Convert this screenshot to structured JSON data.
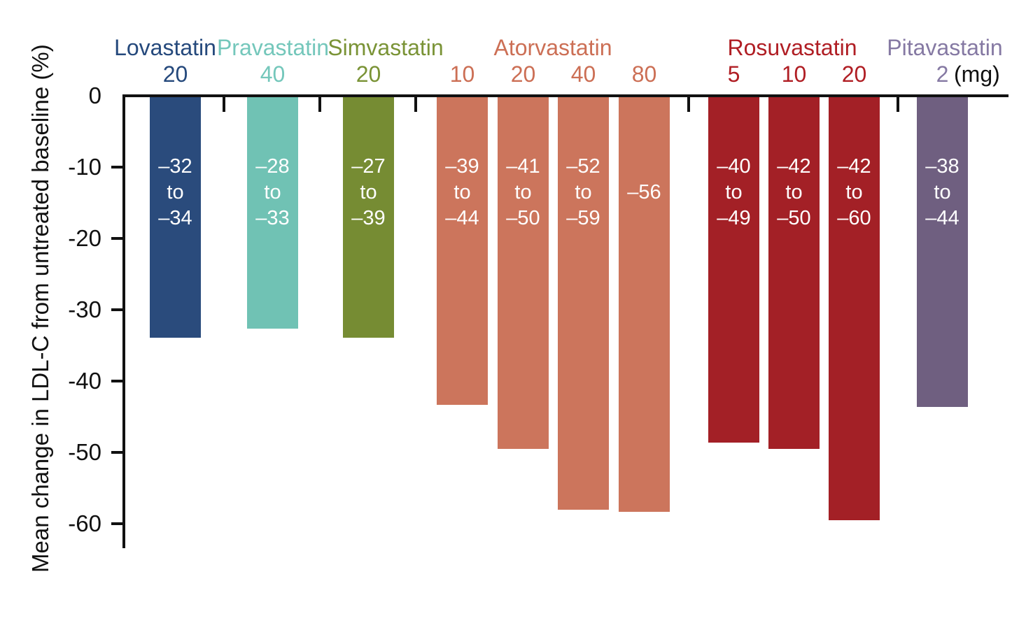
{
  "chart_data": {
    "type": "bar",
    "title": "",
    "ylabel": "Mean change in LDL-C from untreated baseline (%)",
    "xlabel": "",
    "dose_unit_suffix": "(mg)",
    "ylim": [
      -65,
      0
    ],
    "yticks": [
      0,
      -10,
      -20,
      -30,
      -40,
      -50,
      -60
    ],
    "grid": false,
    "legend": "none (groups labeled above bars)",
    "groups": [
      {
        "drug": "Lovastatin",
        "bar_color": "#2A4B7C",
        "label_color": "#25497C",
        "doses": [
          {
            "dose": "20",
            "range_label": "–32\nto\n–34",
            "range_pct": [
              -32,
              -34
            ],
            "bar_end": -34
          }
        ]
      },
      {
        "drug": "Pravastatin",
        "bar_color": "#70C2B4",
        "label_color": "#74C7BB",
        "doses": [
          {
            "dose": "40",
            "range_label": "–28\nto\n–33",
            "range_pct": [
              -28,
              -33
            ],
            "bar_end": -32.7
          }
        ]
      },
      {
        "drug": "Simvastatin",
        "bar_color": "#768C33",
        "label_color": "#7A9336",
        "doses": [
          {
            "dose": "20",
            "range_label": "–27\nto\n–39",
            "range_pct": [
              -27,
              -39
            ],
            "bar_end": -34
          }
        ]
      },
      {
        "drug": "Atorvastatin",
        "bar_color": "#CC755C",
        "label_color": "#CC6F55",
        "doses": [
          {
            "dose": "10",
            "range_label": "–39\nto\n–44",
            "range_pct": [
              -39,
              -44
            ],
            "bar_end": -43.5
          },
          {
            "dose": "20",
            "range_label": "–41\nto\n–50",
            "range_pct": [
              -41,
              -50
            ],
            "bar_end": -49.7
          },
          {
            "dose": "40",
            "range_label": "–52\nto\n–59",
            "range_pct": [
              -52,
              -59
            ],
            "bar_end": -58.2
          },
          {
            "dose": "80",
            "range_label": "–56",
            "range_pct": [
              -56
            ],
            "bar_end": -58.5
          }
        ]
      },
      {
        "drug": "Rosuvastatin",
        "bar_color": "#A32026",
        "label_color": "#B01E24",
        "doses": [
          {
            "dose": "5",
            "range_label": "–40\nto\n–49",
            "range_pct": [
              -40,
              -49
            ],
            "bar_end": -48.8
          },
          {
            "dose": "10",
            "range_label": "–42\nto\n–50",
            "range_pct": [
              -42,
              -50
            ],
            "bar_end": -49.7
          },
          {
            "dose": "20",
            "range_label": "–42\nto\n–60",
            "range_pct": [
              -42,
              -60
            ],
            "bar_end": -59.7
          }
        ]
      },
      {
        "drug": "Pitavastatin",
        "bar_color": "#6F5F80",
        "label_color": "#8579A3",
        "doses": [
          {
            "dose": "2",
            "range_label": "–38\nto\n–44",
            "range_pct": [
              -38,
              -44
            ],
            "bar_end": -43.8
          }
        ]
      }
    ]
  }
}
